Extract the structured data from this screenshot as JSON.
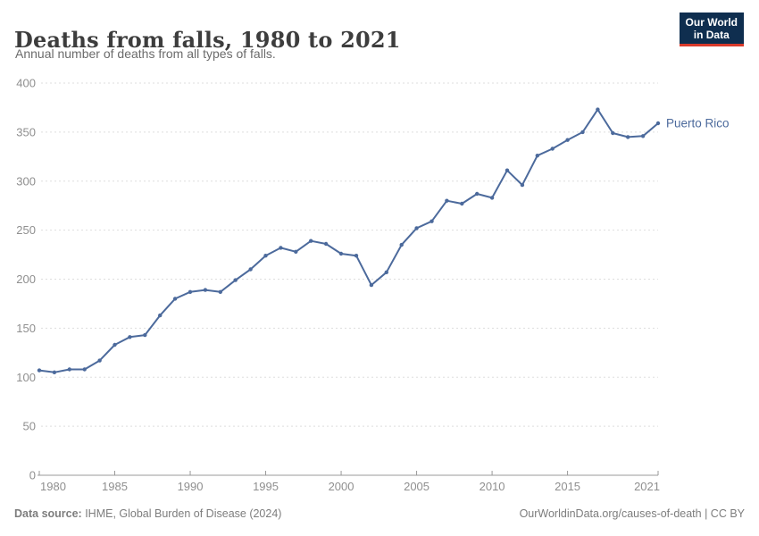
{
  "header": {
    "title": "Deaths from falls, 1980 to 2021",
    "subtitle": "Annual number of deaths from all types of falls."
  },
  "logo": {
    "line1": "Our World",
    "line2": "in Data"
  },
  "chart_data": {
    "type": "line",
    "title": "Deaths from falls, 1980 to 2021",
    "subtitle": "Annual number of deaths from all types of falls.",
    "xlim": [
      1980,
      2021
    ],
    "ylim": [
      0,
      400
    ],
    "x_ticks": [
      1980,
      1985,
      1990,
      1995,
      2000,
      2005,
      2010,
      2015,
      2021
    ],
    "y_ticks": [
      0,
      50,
      100,
      150,
      200,
      250,
      300,
      350,
      400
    ],
    "grid": "horizontal-dashed",
    "legend": "entity label at end of line",
    "series": [
      {
        "name": "Puerto Rico",
        "color": "#4C6A9C",
        "x": [
          1980,
          1981,
          1982,
          1983,
          1984,
          1985,
          1986,
          1987,
          1988,
          1989,
          1990,
          1991,
          1992,
          1993,
          1994,
          1995,
          1996,
          1997,
          1998,
          1999,
          2000,
          2001,
          2002,
          2003,
          2004,
          2005,
          2006,
          2007,
          2008,
          2009,
          2010,
          2011,
          2012,
          2013,
          2014,
          2015,
          2016,
          2017,
          2018,
          2019,
          2020,
          2021
        ],
        "values": [
          107,
          105,
          108,
          108,
          117,
          133,
          141,
          143,
          163,
          180,
          187,
          189,
          187,
          199,
          210,
          224,
          232,
          228,
          239,
          236,
          226,
          224,
          194,
          207,
          235,
          252,
          259,
          280,
          277,
          287,
          283,
          311,
          296,
          326,
          333,
          342,
          350,
          373,
          349,
          345,
          346,
          359
        ]
      }
    ]
  },
  "footer": {
    "data_source_label": "Data source:",
    "data_source_value": " IHME, Global Burden of Disease (2024)",
    "credit": "OurWorldinData.org/causes-of-death | CC BY"
  },
  "colors": {
    "line": "#4C6A9C",
    "title_text": "#3D3D3D",
    "subtitle_text": "#6B6B6B",
    "axis_text": "#8F8F8F",
    "gridline": "#DEDEDE",
    "axis_line": "#999999",
    "footer_text": "#7D7D7D",
    "logo_bg": "#0F2E4F",
    "logo_stripe": "#D93A2B"
  }
}
